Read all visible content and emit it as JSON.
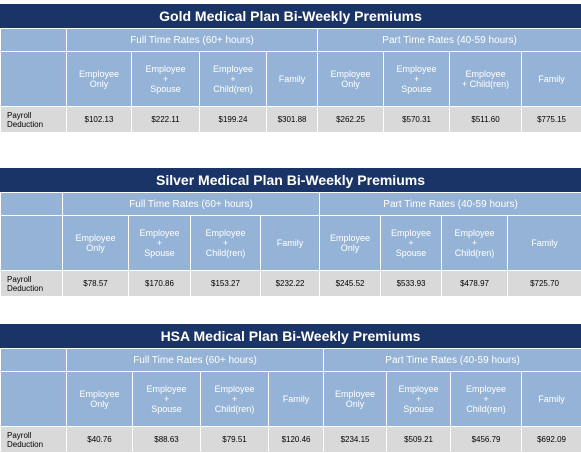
{
  "plans": [
    {
      "title": "Gold Medical Plan Bi-Weekly Premiums",
      "full_time_label": "Full Time Rates (60+ hours)",
      "part_time_label": "Part Time Rates (40-59 hours)",
      "row_label": [
        "Payroll",
        "Deduction"
      ],
      "columns": [
        [
          "Employee",
          "Only"
        ],
        [
          "Employee",
          "+",
          "Spouse"
        ],
        [
          "Employee",
          "+",
          "Child(ren)"
        ],
        [
          "Family"
        ],
        [
          "Employee",
          "Only"
        ],
        [
          "Employee",
          "+",
          "Spouse"
        ],
        [
          "Employee",
          "+ Child(ren)"
        ],
        [
          "Family"
        ]
      ],
      "values": [
        "$102.13",
        "$222.11",
        "$199.24",
        "$301.88",
        "$262.25",
        "$570.31",
        "$511.60",
        "$775.15"
      ]
    },
    {
      "title": "Silver Medical Plan Bi-Weekly Premiums",
      "full_time_label": "Full Time Rates (60+ hours)",
      "part_time_label": "Part Time Rates (40-59 hours)",
      "row_label": [
        "Payroll",
        "Deduction"
      ],
      "columns": [
        [
          "Employee",
          "Only"
        ],
        [
          "Employee",
          "+",
          "Spouse"
        ],
        [
          "Employee",
          "+",
          "Child(ren)"
        ],
        [
          "Family"
        ],
        [
          "Employee",
          "Only"
        ],
        [
          "Employee",
          "+",
          "Spouse"
        ],
        [
          "Employee",
          "+",
          "Child(ren)"
        ],
        [
          "Family"
        ]
      ],
      "values": [
        "$78.57",
        "$170.86",
        "$153.27",
        "$232.22",
        "$245.52",
        "$533.93",
        "$478.97",
        "$725.70"
      ]
    },
    {
      "title": "HSA Medical Plan Bi-Weekly Premiums",
      "full_time_label": "Full Time Rates (60+ hours)",
      "part_time_label": "Part Time Rates (40-59 hours)",
      "row_label": [
        "Payroll",
        "Deduction"
      ],
      "columns": [
        [
          "Employee",
          "Only"
        ],
        [
          "Employee",
          "+",
          "Spouse"
        ],
        [
          "Employee",
          "+",
          "Child(ren)"
        ],
        [
          "Family"
        ],
        [
          "Employee",
          "Only"
        ],
        [
          "Employee",
          "+",
          "Spouse"
        ],
        [
          "Employee",
          "+",
          "Child(ren)"
        ],
        [
          "Family"
        ]
      ],
      "values": [
        "$40.76",
        "$88.63",
        "$79.51",
        "$120.46",
        "$234.15",
        "$509.21",
        "$456.79",
        "$692.09"
      ]
    }
  ]
}
